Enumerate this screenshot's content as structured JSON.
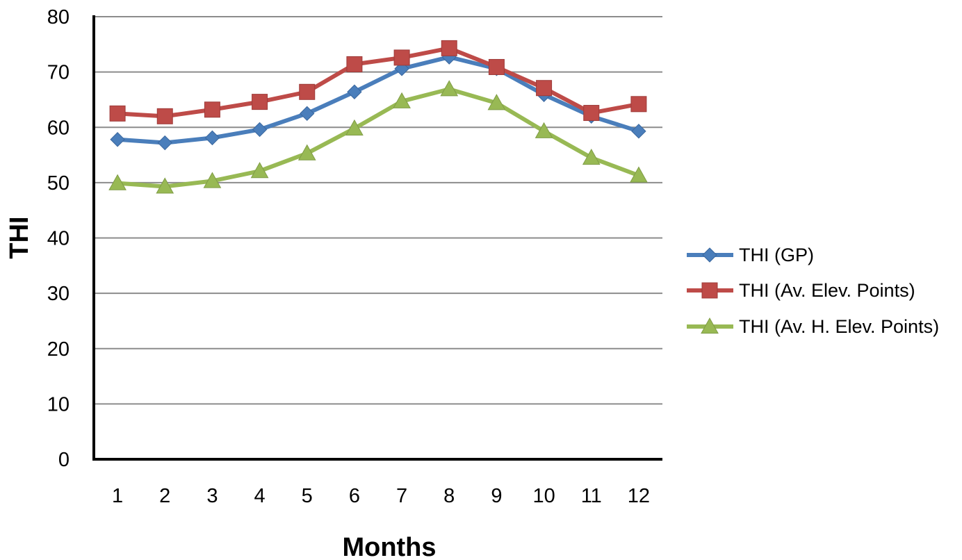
{
  "chart_data": {
    "type": "line",
    "title": "",
    "xlabel": "Months",
    "ylabel": "THI",
    "ylim": [
      0,
      80
    ],
    "yticks": [
      0,
      10,
      20,
      30,
      40,
      50,
      60,
      70,
      80
    ],
    "categories": [
      "1",
      "2",
      "3",
      "4",
      "5",
      "6",
      "7",
      "8",
      "9",
      "10",
      "11",
      "12"
    ],
    "grid": true,
    "legend_position": "right",
    "series": [
      {
        "name": "THI (GP)",
        "marker": "diamond",
        "color": "#4a7ebb",
        "values": [
          57.8,
          57.2,
          58.1,
          59.6,
          62.5,
          66.4,
          70.6,
          72.7,
          70.6,
          65.9,
          62.0,
          59.3
        ]
      },
      {
        "name": "THI (Av. Elev. Points)",
        "marker": "square",
        "color": "#be4b48",
        "values": [
          62.5,
          62.0,
          63.2,
          64.6,
          66.4,
          71.4,
          72.6,
          74.3,
          70.9,
          67.1,
          62.6,
          64.2
        ]
      },
      {
        "name": "THI (Av. H. Elev. Points)",
        "marker": "triangle",
        "color": "#98b954",
        "values": [
          49.9,
          49.3,
          50.3,
          52.1,
          55.3,
          59.8,
          64.7,
          66.9,
          64.4,
          59.3,
          54.5,
          51.3
        ]
      }
    ]
  }
}
